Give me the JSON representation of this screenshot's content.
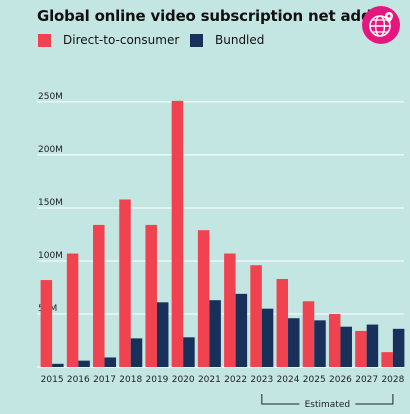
{
  "icons": {
    "badge": "globe-pin-icon"
  },
  "colors": {
    "background": "#c4e6e3",
    "direct": "#f0434f",
    "bundled": "#17315b",
    "badge": "#e5177e"
  },
  "chart_data": {
    "type": "bar",
    "title": "Global online video subscription net adds",
    "categories": [
      "2015",
      "2016",
      "2017",
      "2018",
      "2019",
      "2020",
      "2021",
      "2022",
      "2023",
      "2024",
      "2025",
      "2026",
      "2027",
      "2028"
    ],
    "series": [
      {
        "name": "Direct-to-consumer",
        "values": [
          82,
          107,
          134,
          158,
          134,
          251,
          129,
          107,
          96,
          83,
          62,
          50,
          34,
          14
        ]
      },
      {
        "name": "Bundled",
        "values": [
          3,
          6,
          9,
          27,
          61,
          28,
          63,
          69,
          55,
          46,
          44,
          38,
          40,
          36
        ]
      }
    ],
    "ylim": [
      0,
      265
    ],
    "yticks": [
      50,
      100,
      150,
      200,
      250
    ],
    "ytick_labels": [
      "50M",
      "100M",
      "150M",
      "200M",
      "250M"
    ],
    "grid": true,
    "legend": "top-left",
    "annotation": {
      "text": "Estimated",
      "from": "2023",
      "to": "2028"
    }
  }
}
